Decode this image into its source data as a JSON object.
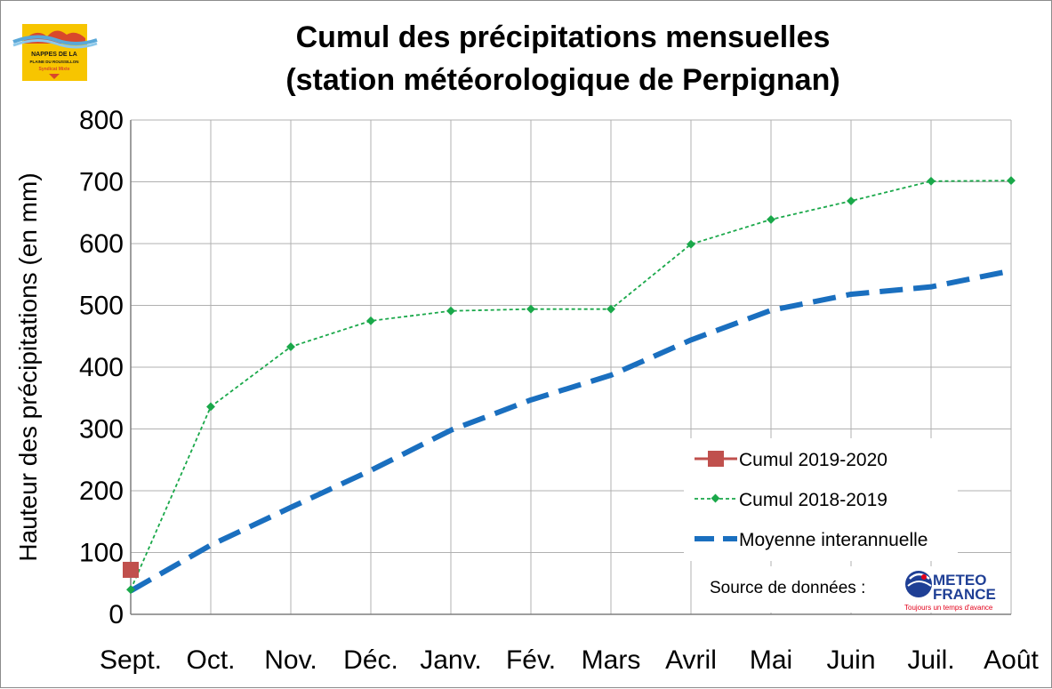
{
  "logo": {
    "line1": "NAPPES DE LA",
    "line2": "PLAINE DU ROUSSILLON",
    "line3": "Syndicat Mixte"
  },
  "source": {
    "label": "Source de données :",
    "brand_line1": "METEO",
    "brand_line2": "FRANCE",
    "tagline": "Toujours un temps d'avance"
  },
  "colors": {
    "cumul_2019_2020": "#c0504d",
    "cumul_2018_2019": "#1aa84a",
    "moyenne": "#1a6fbf",
    "grid": "#b0b0b0"
  },
  "chart_data": {
    "type": "line",
    "title_line1": "Cumul des précipitations mensuelles",
    "title_line2": "(station météorologique de Perpignan)",
    "ylabel": "Hauteur des précipitations (en mm)",
    "xlabel": "",
    "ylim": [
      0,
      800
    ],
    "yticks": [
      "0",
      "100",
      "200",
      "300",
      "400",
      "500",
      "600",
      "700",
      "800"
    ],
    "categories": [
      "Sept.",
      "Oct.",
      "Nov.",
      "Déc.",
      "Janv.",
      "Fév.",
      "Mars",
      "Avril",
      "Mai",
      "Juin",
      "Juil.",
      "Août"
    ],
    "grid": true,
    "legend_position": "bottom-right",
    "series": [
      {
        "name": "Cumul 2019-2020",
        "values": [
          72,
          null,
          null,
          null,
          null,
          null,
          null,
          null,
          null,
          null,
          null,
          null
        ]
      },
      {
        "name": "Cumul 2018-2019",
        "values": [
          40,
          336,
          433,
          475,
          491,
          494,
          494,
          599,
          639,
          669,
          701,
          702
        ]
      },
      {
        "name": "Moyenne interannuelle",
        "values": [
          38,
          112,
          173,
          233,
          298,
          347,
          387,
          444,
          492,
          518,
          530,
          556
        ]
      }
    ]
  }
}
